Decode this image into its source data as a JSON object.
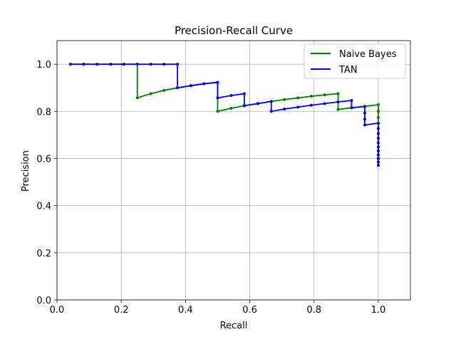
{
  "chart_data": {
    "type": "line",
    "title": "Precision-Recall Curve",
    "xlabel": "Recall",
    "ylabel": "Precision",
    "xlim": [
      0.0,
      1.1
    ],
    "ylim": [
      0.0,
      1.1
    ],
    "xticks": [
      "0.0",
      "0.2",
      "0.4",
      "0.6",
      "0.8",
      "1.0"
    ],
    "yticks": [
      "0.0",
      "0.2",
      "0.4",
      "0.6",
      "0.8",
      "1.0"
    ],
    "grid": true,
    "legend_position": "upper right",
    "series": [
      {
        "name": "Naive Bayes",
        "color": "#008000",
        "points": [
          [
            0.042,
            1.0
          ],
          [
            0.083,
            1.0
          ],
          [
            0.125,
            1.0
          ],
          [
            0.167,
            1.0
          ],
          [
            0.208,
            1.0
          ],
          [
            0.25,
            1.0
          ],
          [
            0.25,
            0.857
          ],
          [
            0.292,
            0.875
          ],
          [
            0.333,
            0.889
          ],
          [
            0.375,
            0.9
          ],
          [
            0.417,
            0.909
          ],
          [
            0.458,
            0.917
          ],
          [
            0.5,
            0.923
          ],
          [
            0.5,
            0.857
          ],
          [
            0.5,
            0.8
          ],
          [
            0.542,
            0.813
          ],
          [
            0.583,
            0.824
          ],
          [
            0.625,
            0.833
          ],
          [
            0.667,
            0.842
          ],
          [
            0.708,
            0.85
          ],
          [
            0.75,
            0.857
          ],
          [
            0.792,
            0.864
          ],
          [
            0.833,
            0.87
          ],
          [
            0.875,
            0.875
          ],
          [
            0.875,
            0.84
          ],
          [
            0.875,
            0.808
          ],
          [
            0.917,
            0.815
          ],
          [
            0.958,
            0.821
          ],
          [
            1.0,
            0.828
          ],
          [
            1.0,
            0.8
          ],
          [
            1.0,
            0.774
          ],
          [
            1.0,
            0.75
          ],
          [
            1.0,
            0.727
          ],
          [
            1.0,
            0.706
          ],
          [
            1.0,
            0.686
          ],
          [
            1.0,
            0.667
          ],
          [
            1.0,
            0.649
          ],
          [
            1.0,
            0.632
          ],
          [
            1.0,
            0.615
          ],
          [
            1.0,
            0.6
          ],
          [
            1.0,
            0.585
          ],
          [
            1.0,
            0.571
          ]
        ]
      },
      {
        "name": "TAN",
        "color": "#0000ff",
        "points": [
          [
            0.042,
            1.0
          ],
          [
            0.083,
            1.0
          ],
          [
            0.125,
            1.0
          ],
          [
            0.167,
            1.0
          ],
          [
            0.208,
            1.0
          ],
          [
            0.25,
            1.0
          ],
          [
            0.292,
            1.0
          ],
          [
            0.333,
            1.0
          ],
          [
            0.375,
            1.0
          ],
          [
            0.375,
            0.9
          ],
          [
            0.417,
            0.909
          ],
          [
            0.458,
            0.917
          ],
          [
            0.5,
            0.923
          ],
          [
            0.5,
            0.857
          ],
          [
            0.542,
            0.867
          ],
          [
            0.583,
            0.875
          ],
          [
            0.583,
            0.824
          ],
          [
            0.625,
            0.833
          ],
          [
            0.667,
            0.842
          ],
          [
            0.667,
            0.8
          ],
          [
            0.708,
            0.81
          ],
          [
            0.75,
            0.818
          ],
          [
            0.792,
            0.826
          ],
          [
            0.833,
            0.833
          ],
          [
            0.875,
            0.84
          ],
          [
            0.917,
            0.846
          ],
          [
            0.917,
            0.815
          ],
          [
            0.958,
            0.821
          ],
          [
            0.958,
            0.793
          ],
          [
            0.958,
            0.767
          ],
          [
            0.958,
            0.742
          ],
          [
            1.0,
            0.75
          ],
          [
            1.0,
            0.727
          ],
          [
            1.0,
            0.706
          ],
          [
            1.0,
            0.686
          ],
          [
            1.0,
            0.667
          ],
          [
            1.0,
            0.649
          ],
          [
            1.0,
            0.632
          ],
          [
            1.0,
            0.615
          ],
          [
            1.0,
            0.6
          ],
          [
            1.0,
            0.585
          ],
          [
            1.0,
            0.571
          ]
        ]
      }
    ]
  }
}
